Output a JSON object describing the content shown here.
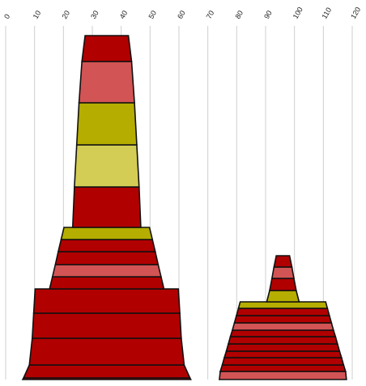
{
  "chart_data": {
    "type": "bar",
    "xlim": [
      0,
      120
    ],
    "x_ticks": [
      "0",
      "10",
      "20",
      "30",
      "40",
      "50",
      "60",
      "70",
      "80",
      "90",
      "100",
      "110",
      "120"
    ],
    "grid": true,
    "colors": {
      "dark_red": "#b10000",
      "light_red": "#d35454",
      "olive": "#b5ad00",
      "light_olive": "#d3cd55",
      "outline": "#111111"
    },
    "stacks": [
      {
        "center": 35,
        "segments": [
          {
            "bottom_width": 58.2,
            "top_width": 57.6,
            "height": 2,
            "color": "dark_red"
          },
          {
            "bottom_width": 57.6,
            "top_width": 53.6,
            "height": 16,
            "color": "dark_red"
          },
          {
            "bottom_width": 53.6,
            "top_width": 51.6,
            "height": 33,
            "color": "dark_red"
          },
          {
            "bottom_width": 51.6,
            "top_width": 50.6,
            "height": 31,
            "color": "dark_red"
          },
          {
            "bottom_width": 50.6,
            "top_width": 49.6,
            "height": 30,
            "color": "dark_red"
          },
          {
            "bottom_width": 39.6,
            "top_width": 37.6,
            "height": 15,
            "color": "dark_red"
          },
          {
            "bottom_width": 37.6,
            "top_width": 35.6,
            "height": 15,
            "color": "light_red"
          },
          {
            "bottom_width": 35.6,
            "top_width": 33.6,
            "height": 16,
            "color": "dark_red"
          },
          {
            "bottom_width": 33.6,
            "top_width": 31.6,
            "height": 15,
            "color": "dark_red"
          },
          {
            "bottom_width": 31.6,
            "top_width": 29.6,
            "height": 15,
            "color": "olive"
          },
          {
            "bottom_width": 23.6,
            "top_width": 22.4,
            "height": 50,
            "color": "dark_red"
          },
          {
            "bottom_width": 22.4,
            "top_width": 20.8,
            "height": 52,
            "color": "light_olive"
          },
          {
            "bottom_width": 20.8,
            "top_width": 19.2,
            "height": 52,
            "color": "olive"
          },
          {
            "bottom_width": 19.2,
            "top_width": 17.2,
            "height": 51,
            "color": "light_red"
          },
          {
            "bottom_width": 17.2,
            "top_width": 15.0,
            "height": 32,
            "color": "dark_red"
          }
        ]
      },
      {
        "center": 96,
        "segments": [
          {
            "bottom_width": 44.0,
            "top_width": 43.4,
            "height": 10,
            "color": "light_red"
          },
          {
            "bottom_width": 43.4,
            "top_width": 42.0,
            "height": 8,
            "color": "dark_red"
          },
          {
            "bottom_width": 42.0,
            "top_width": 40.6,
            "height": 9,
            "color": "dark_red"
          },
          {
            "bottom_width": 40.6,
            "top_width": 39.2,
            "height": 8,
            "color": "dark_red"
          },
          {
            "bottom_width": 39.2,
            "top_width": 37.8,
            "height": 9,
            "color": "dark_red"
          },
          {
            "bottom_width": 37.8,
            "top_width": 36.4,
            "height": 9,
            "color": "dark_red"
          },
          {
            "bottom_width": 36.4,
            "top_width": 35.0,
            "height": 8,
            "color": "dark_red"
          },
          {
            "bottom_width": 35.0,
            "top_width": 33.6,
            "height": 9,
            "color": "light_red"
          },
          {
            "bottom_width": 33.6,
            "top_width": 32.2,
            "height": 9,
            "color": "dark_red"
          },
          {
            "bottom_width": 32.2,
            "top_width": 30.8,
            "height": 9,
            "color": "dark_red"
          },
          {
            "bottom_width": 30.8,
            "top_width": 29.6,
            "height": 8,
            "color": "olive"
          },
          {
            "bottom_width": 20.8,
            "top_width": 20.8,
            "height": 0,
            "color": "dark_red"
          },
          {
            "bottom_width": 11.2,
            "top_width": 9.2,
            "height": 14,
            "color": "olive"
          },
          {
            "bottom_width": 9.2,
            "top_width": 7.6,
            "height": 15,
            "color": "dark_red"
          },
          {
            "bottom_width": 7.6,
            "top_width": 6.2,
            "height": 14,
            "color": "light_red"
          },
          {
            "bottom_width": 6.2,
            "top_width": 4.6,
            "height": 14,
            "color": "dark_red"
          }
        ]
      }
    ]
  }
}
